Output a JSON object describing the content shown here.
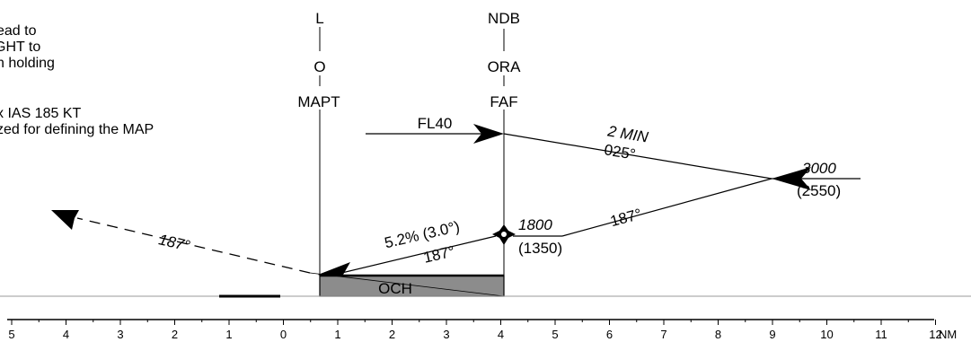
{
  "notes": {
    "line1": "ead to",
    "line2": "GHT to",
    "line3": "n holding",
    "line4": "x IAS 185 KT",
    "line5": "zed for defining the MAP"
  },
  "mapt_fix": {
    "type": "L",
    "ident": "O",
    "role": "MAPT"
  },
  "faf_fix": {
    "type": "NDB",
    "ident": "ORA",
    "role": "FAF"
  },
  "segments": {
    "initial_level": "FL40",
    "outbound_time": "2 MIN",
    "outbound_track": "025°",
    "inbound_track": "187°",
    "final_gradient": "5.2% (3.0°)",
    "final_track": "187°",
    "missed_track": "187°"
  },
  "altitudes": {
    "ip_alt": "3000",
    "ip_height": "(2550)",
    "step_alt": "1800",
    "step_height": "(1350)"
  },
  "och_label": "OCH",
  "distance_scale": {
    "unit": "NM",
    "labels": [
      "5",
      "4",
      "3",
      "2",
      "1",
      "0",
      "1",
      "2",
      "3",
      "4",
      "5",
      "6",
      "7",
      "8",
      "9",
      "10",
      "11",
      "12"
    ]
  },
  "colors": {
    "line": "#000000",
    "och_box": "#8c8c8c",
    "ground": "#9a9a9a"
  }
}
